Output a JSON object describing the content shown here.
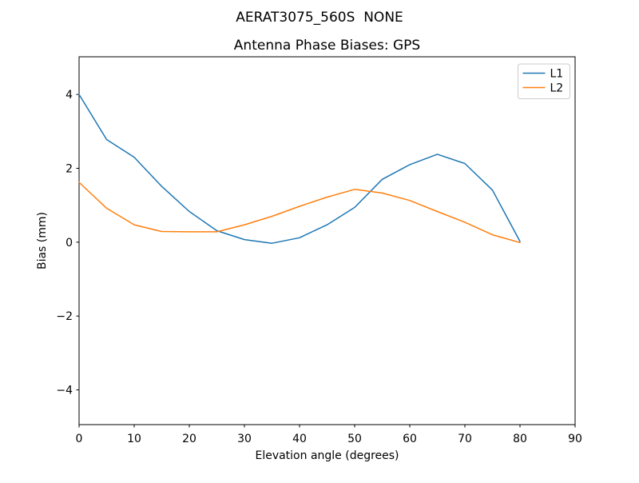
{
  "figure": {
    "suptitle": "AERAT3075_560S  NONE"
  },
  "chart_data": {
    "type": "line",
    "title": "AERAT3075_560S  NONE",
    "subtitle": "Antenna Phase Biases: GPS",
    "xlabel": "Elevation angle (degrees)",
    "ylabel": "Bias (mm)",
    "xlim": [
      0,
      90
    ],
    "ylim": [
      -4.94,
      5.02
    ],
    "x_ticks": [
      0,
      10,
      20,
      30,
      40,
      50,
      60,
      70,
      80,
      90
    ],
    "x_tick_labels": [
      "0",
      "10",
      "20",
      "30",
      "40",
      "50",
      "60",
      "70",
      "80",
      "90"
    ],
    "y_ticks": [
      -4,
      -2,
      0,
      2,
      4
    ],
    "y_tick_labels": [
      "−4",
      "−2",
      "0",
      "2",
      "4"
    ],
    "grid": false,
    "legend_position": "upper right",
    "background": "#ffffff",
    "spine_color": "#000000",
    "x": [
      0,
      5,
      10,
      15,
      20,
      25,
      30,
      35,
      40,
      45,
      50,
      55,
      60,
      65,
      70,
      75,
      80
    ],
    "series": [
      {
        "name": "L1",
        "color": "#1f77b4",
        "values": [
          4.0,
          2.78,
          2.3,
          1.51,
          0.83,
          0.31,
          0.07,
          -0.03,
          0.12,
          0.47,
          0.94,
          1.7,
          2.1,
          2.38,
          2.13,
          1.41,
          0.02
        ]
      },
      {
        "name": "L2",
        "color": "#ff7f0e",
        "values": [
          1.62,
          0.92,
          0.47,
          0.29,
          0.28,
          0.28,
          0.47,
          0.7,
          0.97,
          1.22,
          1.43,
          1.33,
          1.13,
          0.83,
          0.54,
          0.2,
          -0.01
        ]
      }
    ]
  }
}
